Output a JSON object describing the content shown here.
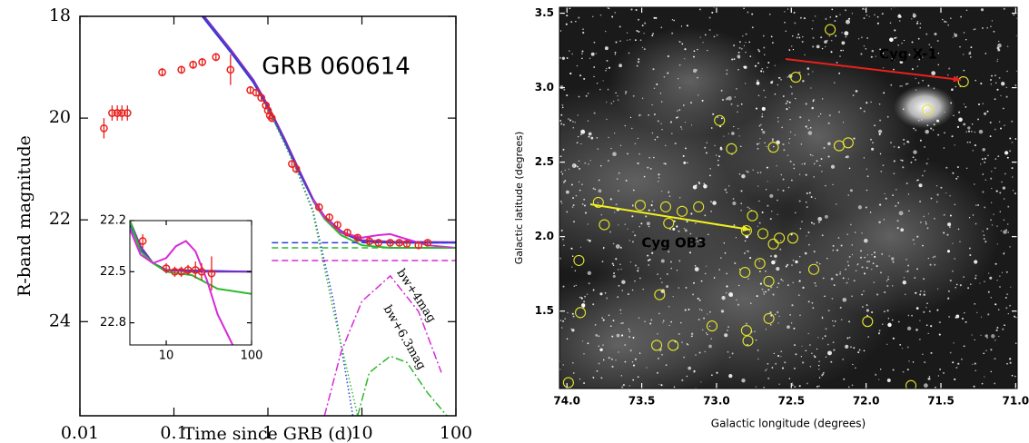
{
  "chart_data": [
    {
      "type": "line",
      "title": "GRB 060614",
      "xlabel": "Time since GRB (d)",
      "ylabel": "R-band magnitude",
      "xscale": "log",
      "yinvert": true,
      "xlim": [
        0.01,
        100
      ],
      "ylim": [
        18,
        25.85
      ],
      "xticks": [
        0.01,
        0.1,
        1,
        10,
        100
      ],
      "yticks": [
        18,
        20,
        22,
        24
      ],
      "points": {
        "color": "#e8211c",
        "x": [
          0.018,
          0.022,
          0.025,
          0.028,
          0.032,
          0.075,
          0.12,
          0.16,
          0.2,
          0.28,
          0.4,
          0.65,
          0.75,
          0.85,
          0.95,
          1.0,
          1.05,
          1.1,
          1.8,
          2.0,
          3.5,
          4.5,
          5.5,
          7,
          9,
          12,
          15,
          20,
          25,
          30,
          40,
          50
        ],
        "values": [
          20.2,
          19.9,
          19.9,
          19.9,
          19.9,
          19.1,
          19.05,
          18.95,
          18.9,
          18.8,
          19.05,
          19.45,
          19.5,
          19.6,
          19.75,
          19.85,
          19.95,
          20.0,
          20.9,
          21.0,
          21.75,
          21.95,
          22.1,
          22.25,
          22.35,
          22.42,
          22.45,
          22.45,
          22.45,
          22.47,
          22.5,
          22.45
        ],
        "errors": [
          0.2,
          0.15,
          0.15,
          0.15,
          0.15,
          0.08,
          0.08,
          0.08,
          0.08,
          0.08,
          0.3,
          0.06,
          0.06,
          0.06,
          0.06,
          0.06,
          0.06,
          0.06,
          0.05,
          0.05,
          0.05,
          0.05,
          0.05,
          0.05,
          0.05,
          0.05,
          0.05,
          0.05,
          0.05,
          0.05,
          0.05,
          0.05
        ]
      },
      "series": [
        {
          "color": "#2a3fd8",
          "dash": "solid",
          "x": [
            0.2,
            0.4,
            0.7,
            1,
            1.5,
            2,
            3,
            4,
            6,
            10,
            20,
            100
          ],
          "values": [
            18,
            18.7,
            19.3,
            19.8,
            20.45,
            20.95,
            21.6,
            21.95,
            22.25,
            22.42,
            22.45,
            22.45
          ]
        },
        {
          "color": "#7a2fc0",
          "dash": "solid",
          "x": [
            0.21,
            0.4,
            0.7,
            1,
            1.5,
            2,
            3,
            4,
            6,
            10,
            20,
            100
          ],
          "values": [
            18,
            18.65,
            19.25,
            19.75,
            20.4,
            20.9,
            21.58,
            21.93,
            22.22,
            22.4,
            22.43,
            22.44
          ]
        },
        {
          "color": "#2db82d",
          "dash": "solid",
          "x": [
            3,
            4,
            6,
            10,
            20,
            100
          ],
          "values": [
            21.62,
            21.98,
            22.3,
            22.5,
            22.55,
            22.55
          ]
        },
        {
          "color": "#d82ad8",
          "dash": "solid",
          "x": [
            3,
            4,
            6,
            10,
            15,
            20,
            30,
            50,
            100
          ],
          "values": [
            21.6,
            21.95,
            22.25,
            22.35,
            22.3,
            22.28,
            22.38,
            22.5,
            22.55
          ]
        },
        {
          "color": "#2a3fd8",
          "dash": "dashed",
          "x": [
            1.1,
            100
          ],
          "values": [
            22.45,
            22.45
          ]
        },
        {
          "color": "#2db82d",
          "dash": "dashed",
          "x": [
            1.1,
            100
          ],
          "values": [
            22.55,
            22.55
          ]
        },
        {
          "color": "#d82ad8",
          "dash": "dashed",
          "x": [
            1.1,
            100
          ],
          "values": [
            22.8,
            22.8
          ]
        },
        {
          "color": "#2a3fd8",
          "dash": "dotted",
          "x": [
            1,
            2,
            3,
            5,
            8
          ],
          "values": [
            19.8,
            21.0,
            21.8,
            23.6,
            25.85
          ]
        },
        {
          "color": "#2db82d",
          "dash": "dotted",
          "x": [
            1,
            2,
            3,
            5,
            9
          ],
          "values": [
            19.8,
            21.0,
            21.85,
            23.8,
            25.85
          ]
        },
        {
          "color": "#d82ad8",
          "dash": "dashdot",
          "x": [
            4,
            6,
            10,
            20,
            40,
            70
          ],
          "values": [
            25.85,
            24.6,
            23.6,
            23.1,
            23.8,
            25.0
          ]
        },
        {
          "color": "#2db82d",
          "dash": "dashdot",
          "x": [
            9,
            12,
            20,
            30,
            50,
            80
          ],
          "values": [
            25.85,
            25.0,
            24.68,
            24.8,
            25.4,
            25.85
          ]
        }
      ],
      "annotations": [
        {
          "text": "bw+4mag",
          "color": "#d82ad8"
        },
        {
          "text": "bw+6.3mag",
          "color": "#2db82d"
        }
      ]
    },
    {
      "type": "line",
      "xscale": "log",
      "yinvert": true,
      "xlim": [
        3.75,
        100
      ],
      "ylim": [
        22.2,
        22.93
      ],
      "xticks": [
        10,
        100
      ],
      "yticks": [
        22.2,
        22.5,
        22.8
      ],
      "points": {
        "color": "#e8211c",
        "x": [
          5.3,
          10,
          12.6,
          15,
          18,
          22,
          26,
          34
        ],
        "values": [
          22.32,
          22.48,
          22.5,
          22.5,
          22.49,
          22.49,
          22.5,
          22.51
        ],
        "errors": [
          0.04,
          0.03,
          0.03,
          0.03,
          0.03,
          0.05,
          0.05,
          0.1
        ]
      },
      "series": [
        {
          "color": "#2a3fd8",
          "dash": "solid",
          "x": [
            3.75,
            5,
            7,
            10,
            100
          ],
          "values": [
            22.22,
            22.37,
            22.45,
            22.49,
            22.5
          ]
        },
        {
          "color": "#7a2fc0",
          "dash": "solid",
          "x": [
            3.75,
            5,
            7,
            10,
            20,
            100
          ],
          "values": [
            22.2,
            22.35,
            22.45,
            22.49,
            22.5,
            22.5
          ]
        },
        {
          "color": "#2db82d",
          "dash": "solid",
          "x": [
            3.75,
            5,
            7,
            10,
            20,
            40,
            100
          ],
          "values": [
            22.2,
            22.38,
            22.45,
            22.5,
            22.52,
            22.6,
            22.63
          ]
        },
        {
          "color": "#d82ad8",
          "dash": "solid",
          "x": [
            3.75,
            5,
            7,
            10,
            13,
            17,
            22,
            30,
            40,
            60
          ],
          "values": [
            22.25,
            22.4,
            22.45,
            22.42,
            22.35,
            22.32,
            22.38,
            22.55,
            22.75,
            22.93
          ]
        }
      ]
    },
    {
      "type": "scatter",
      "xlabel": "Galactic longitude (degrees)",
      "ylabel": "Galactic latitude (degrees)",
      "xlim": [
        74.05,
        70.99
      ],
      "ylim": [
        0.98,
        3.54
      ],
      "xticks": [
        {
          "value": 74,
          "label": "74.0"
        },
        73.5,
        {
          "value": 73,
          "label": "73.0"
        },
        72.5,
        {
          "value": 72,
          "label": "72.0"
        },
        71.5,
        {
          "value": 71,
          "label": "71.0"
        }
      ],
      "yticks": [
        1.5,
        {
          "value": 2,
          "label": "2.0"
        },
        2.5,
        {
          "value": 3,
          "label": "3.0"
        },
        3.5
      ],
      "color": "#e6e62a",
      "x": [
        72.24,
        72.47,
        71.35,
        71.59,
        72.98,
        72.62,
        72.9,
        72.18,
        72.12,
        73.79,
        73.51,
        73.34,
        73.12,
        73.32,
        73.23,
        72.76,
        72.69,
        72.49,
        72.58,
        72.8,
        72.62,
        73.75,
        72.81,
        72.71,
        72.65,
        72.35,
        73.92,
        73.38,
        73.91,
        73.03,
        72.8,
        72.65,
        72.79,
        73.4,
        73.29,
        71.99,
        71.7,
        73.99
      ],
      "values": [
        3.39,
        3.07,
        3.04,
        2.85,
        2.78,
        2.6,
        2.59,
        2.61,
        2.63,
        2.23,
        2.21,
        2.2,
        2.2,
        2.09,
        2.17,
        2.14,
        2.02,
        1.99,
        1.99,
        2.04,
        1.95,
        2.08,
        1.76,
        1.82,
        1.7,
        1.78,
        1.84,
        1.61,
        1.49,
        1.4,
        1.37,
        1.45,
        1.3,
        1.27,
        1.27,
        1.43,
        1.0,
        1.02
      ],
      "annotations": [
        {
          "text": "Cyg X-1",
          "color": "#e8211c"
        },
        {
          "text": "Cyg OB3",
          "color": "#f0f020"
        }
      ]
    }
  ]
}
